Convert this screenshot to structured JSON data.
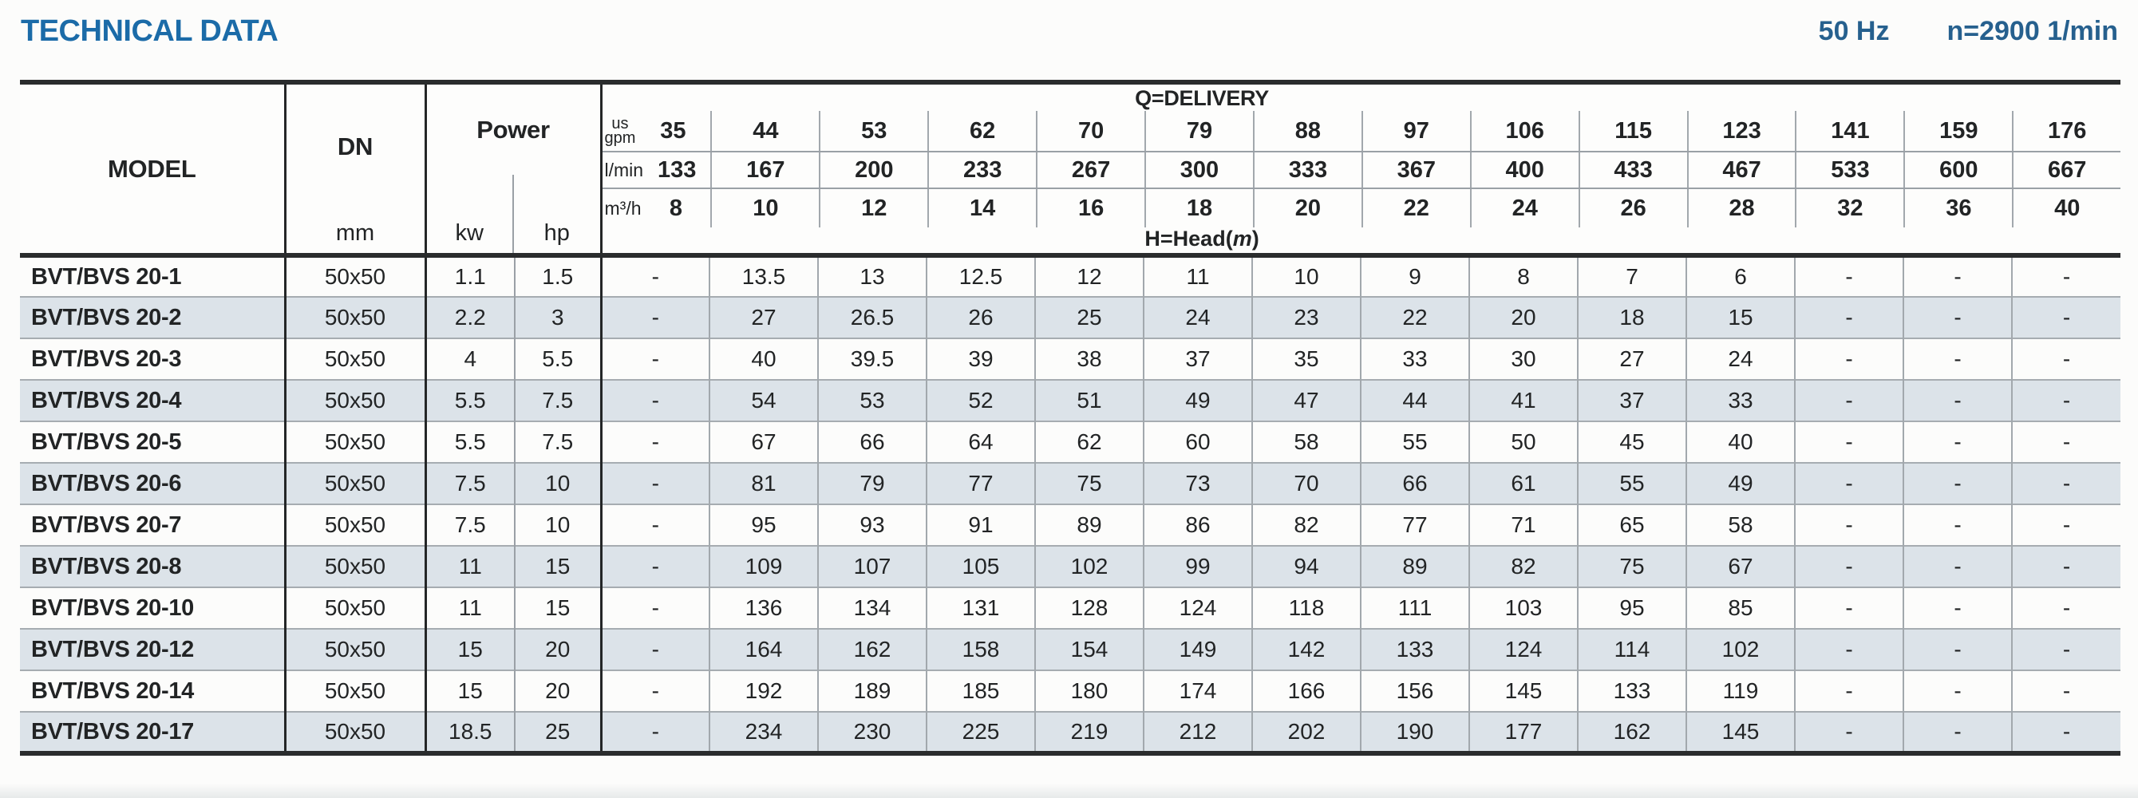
{
  "header": {
    "title": "TECHNICAL DATA",
    "frequency": "50 Hz",
    "speed": "n=2900 1/min"
  },
  "table": {
    "model_header": "MODEL",
    "dn": {
      "label": "DN",
      "unit": "mm"
    },
    "power": {
      "label": "Power",
      "unit_kw": "kw",
      "unit_hp": "hp"
    },
    "delivery": {
      "label": "Q=DELIVERY",
      "head_label": {
        "prefix": "H=Head(",
        "symbol": "m",
        "suffix": ")"
      },
      "unit_rows": [
        {
          "unit_top": "us",
          "unit_bottom": "gpm",
          "values": [
            "35",
            "44",
            "53",
            "62",
            "70",
            "79",
            "88",
            "97",
            "106",
            "115",
            "123",
            "141",
            "159",
            "176"
          ]
        },
        {
          "unit": "l/min",
          "values": [
            "133",
            "167",
            "200",
            "233",
            "267",
            "300",
            "333",
            "367",
            "400",
            "433",
            "467",
            "533",
            "600",
            "667"
          ]
        },
        {
          "unit": "m³/h",
          "values": [
            "8",
            "10",
            "12",
            "14",
            "16",
            "18",
            "20",
            "22",
            "24",
            "26",
            "28",
            "32",
            "36",
            "40"
          ]
        }
      ]
    },
    "rows": [
      {
        "model": "BVT/BVS 20-1",
        "dn": "50x50",
        "kw": "1.1",
        "hp": "1.5",
        "heads": [
          "-",
          "13.5",
          "13",
          "12.5",
          "12",
          "11",
          "10",
          "9",
          "8",
          "7",
          "6",
          "-",
          "-",
          "-"
        ]
      },
      {
        "model": "BVT/BVS 20-2",
        "dn": "50x50",
        "kw": "2.2",
        "hp": "3",
        "heads": [
          "-",
          "27",
          "26.5",
          "26",
          "25",
          "24",
          "23",
          "22",
          "20",
          "18",
          "15",
          "-",
          "-",
          "-"
        ]
      },
      {
        "model": "BVT/BVS 20-3",
        "dn": "50x50",
        "kw": "4",
        "hp": "5.5",
        "heads": [
          "-",
          "40",
          "39.5",
          "39",
          "38",
          "37",
          "35",
          "33",
          "30",
          "27",
          "24",
          "-",
          "-",
          "-"
        ]
      },
      {
        "model": "BVT/BVS 20-4",
        "dn": "50x50",
        "kw": "5.5",
        "hp": "7.5",
        "heads": [
          "-",
          "54",
          "53",
          "52",
          "51",
          "49",
          "47",
          "44",
          "41",
          "37",
          "33",
          "-",
          "-",
          "-"
        ]
      },
      {
        "model": "BVT/BVS 20-5",
        "dn": "50x50",
        "kw": "5.5",
        "hp": "7.5",
        "heads": [
          "-",
          "67",
          "66",
          "64",
          "62",
          "60",
          "58",
          "55",
          "50",
          "45",
          "40",
          "-",
          "-",
          "-"
        ]
      },
      {
        "model": "BVT/BVS 20-6",
        "dn": "50x50",
        "kw": "7.5",
        "hp": "10",
        "heads": [
          "-",
          "81",
          "79",
          "77",
          "75",
          "73",
          "70",
          "66",
          "61",
          "55",
          "49",
          "-",
          "-",
          "-"
        ]
      },
      {
        "model": "BVT/BVS 20-7",
        "dn": "50x50",
        "kw": "7.5",
        "hp": "10",
        "heads": [
          "-",
          "95",
          "93",
          "91",
          "89",
          "86",
          "82",
          "77",
          "71",
          "65",
          "58",
          "-",
          "-",
          "-"
        ]
      },
      {
        "model": "BVT/BVS 20-8",
        "dn": "50x50",
        "kw": "11",
        "hp": "15",
        "heads": [
          "-",
          "109",
          "107",
          "105",
          "102",
          "99",
          "94",
          "89",
          "82",
          "75",
          "67",
          "-",
          "-",
          "-"
        ]
      },
      {
        "model": "BVT/BVS 20-10",
        "dn": "50x50",
        "kw": "11",
        "hp": "15",
        "heads": [
          "-",
          "136",
          "134",
          "131",
          "128",
          "124",
          "118",
          "111",
          "103",
          "95",
          "85",
          "-",
          "-",
          "-"
        ]
      },
      {
        "model": "BVT/BVS 20-12",
        "dn": "50x50",
        "kw": "15",
        "hp": "20",
        "heads": [
          "-",
          "164",
          "162",
          "158",
          "154",
          "149",
          "142",
          "133",
          "124",
          "114",
          "102",
          "-",
          "-",
          "-"
        ]
      },
      {
        "model": "BVT/BVS 20-14",
        "dn": "50x50",
        "kw": "15",
        "hp": "20",
        "heads": [
          "-",
          "192",
          "189",
          "185",
          "180",
          "174",
          "166",
          "156",
          "145",
          "133",
          "119",
          "-",
          "-",
          "-"
        ]
      },
      {
        "model": "BVT/BVS 20-17",
        "dn": "50x50",
        "kw": "18.5",
        "hp": "25",
        "heads": [
          "-",
          "234",
          "230",
          "225",
          "219",
          "212",
          "202",
          "190",
          "177",
          "162",
          "145",
          "-",
          "-",
          "-"
        ]
      }
    ]
  },
  "colors": {
    "title_blue": "#1b6ba8",
    "spec_blue": "#26608e",
    "row_shade": "#dce3e9",
    "heavy_line": "#2a2c2d",
    "thin_line": "#a2a8ad"
  }
}
